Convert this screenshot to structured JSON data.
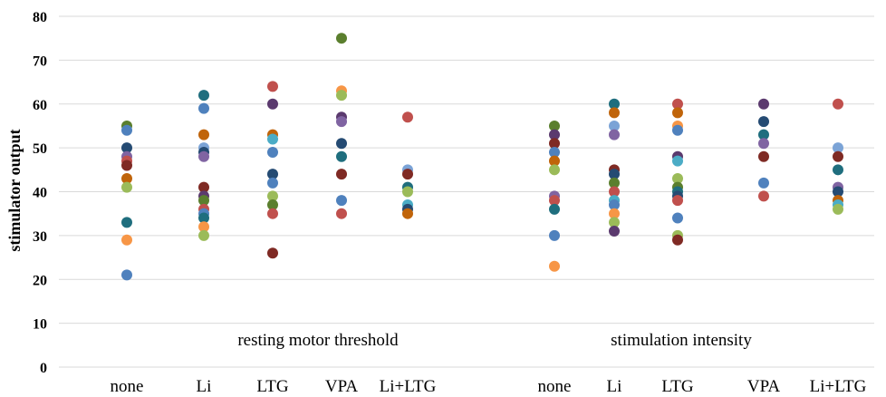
{
  "chart_data": {
    "type": "scatter",
    "ylabel": "stimulator output",
    "ylim": [
      0,
      80
    ],
    "yticks": [
      0,
      10,
      20,
      30,
      40,
      50,
      60,
      70,
      80
    ],
    "grid": true,
    "legend": "none",
    "groups": [
      {
        "label": "resting motor threshold",
        "categories": [
          "none",
          "Li",
          "LTG",
          "VPA",
          "Li+LTG"
        ]
      },
      {
        "label": "stimulation intensity",
        "categories": [
          "none",
          "Li",
          "LTG",
          "VPA",
          "Li+LTG"
        ]
      }
    ],
    "categories": [
      "none",
      "Li",
      "LTG",
      "VPA",
      "Li+LTG",
      "none",
      "Li",
      "LTG",
      "VPA",
      "Li+LTG"
    ],
    "points": [
      {
        "cat": 0,
        "y": 55,
        "color": "#5b7f2e"
      },
      {
        "cat": 0,
        "y": 54,
        "color": "#4f81bd"
      },
      {
        "cat": 0,
        "y": 50,
        "color": "#254b73"
      },
      {
        "cat": 0,
        "y": 48,
        "color": "#8064a2"
      },
      {
        "cat": 0,
        "y": 47,
        "color": "#c0504d"
      },
      {
        "cat": 0,
        "y": 46,
        "color": "#7f2a24"
      },
      {
        "cat": 0,
        "y": 43,
        "color": "#c0640a"
      },
      {
        "cat": 0,
        "y": 41,
        "color": "#9bbb59"
      },
      {
        "cat": 0,
        "y": 33,
        "color": "#1f6e7e"
      },
      {
        "cat": 0,
        "y": 29,
        "color": "#f79646"
      },
      {
        "cat": 0,
        "y": 21,
        "color": "#4f81bd"
      },
      {
        "cat": 1,
        "y": 62,
        "color": "#1f6e7e"
      },
      {
        "cat": 1,
        "y": 59,
        "color": "#4f81bd"
      },
      {
        "cat": 1,
        "y": 53,
        "color": "#c0640a"
      },
      {
        "cat": 1,
        "y": 50,
        "color": "#7ba3d6"
      },
      {
        "cat": 1,
        "y": 49,
        "color": "#254b73"
      },
      {
        "cat": 1,
        "y": 48,
        "color": "#8064a2"
      },
      {
        "cat": 1,
        "y": 41,
        "color": "#7f2a24"
      },
      {
        "cat": 1,
        "y": 39,
        "color": "#5b3a6e"
      },
      {
        "cat": 1,
        "y": 38,
        "color": "#5b7f2e"
      },
      {
        "cat": 1,
        "y": 36,
        "color": "#c0504d"
      },
      {
        "cat": 1,
        "y": 35,
        "color": "#4f81bd"
      },
      {
        "cat": 1,
        "y": 34,
        "color": "#1f6e7e"
      },
      {
        "cat": 1,
        "y": 32,
        "color": "#f79646"
      },
      {
        "cat": 1,
        "y": 30,
        "color": "#9bbb59"
      },
      {
        "cat": 2,
        "y": 64,
        "color": "#c0504d"
      },
      {
        "cat": 2,
        "y": 60,
        "color": "#5b3a6e"
      },
      {
        "cat": 2,
        "y": 53,
        "color": "#c0640a"
      },
      {
        "cat": 2,
        "y": 52,
        "color": "#4bacc6"
      },
      {
        "cat": 2,
        "y": 49,
        "color": "#4f81bd"
      },
      {
        "cat": 2,
        "y": 44,
        "color": "#254b73"
      },
      {
        "cat": 2,
        "y": 42,
        "color": "#4f81bd"
      },
      {
        "cat": 2,
        "y": 39,
        "color": "#9bbb59"
      },
      {
        "cat": 2,
        "y": 37,
        "color": "#5b7f2e"
      },
      {
        "cat": 2,
        "y": 35,
        "color": "#c0504d"
      },
      {
        "cat": 2,
        "y": 26,
        "color": "#7f2a24"
      },
      {
        "cat": 3,
        "y": 75,
        "color": "#5b7f2e"
      },
      {
        "cat": 3,
        "y": 63,
        "color": "#f79646"
      },
      {
        "cat": 3,
        "y": 62,
        "color": "#9bbb59"
      },
      {
        "cat": 3,
        "y": 57,
        "color": "#5b3a6e"
      },
      {
        "cat": 3,
        "y": 56,
        "color": "#8064a2"
      },
      {
        "cat": 3,
        "y": 51,
        "color": "#254b73"
      },
      {
        "cat": 3,
        "y": 48,
        "color": "#1f6e7e"
      },
      {
        "cat": 3,
        "y": 44,
        "color": "#7f2a24"
      },
      {
        "cat": 3,
        "y": 38,
        "color": "#4f81bd"
      },
      {
        "cat": 3,
        "y": 35,
        "color": "#c0504d"
      },
      {
        "cat": 4,
        "y": 57,
        "color": "#c0504d"
      },
      {
        "cat": 4,
        "y": 45,
        "color": "#7ba3d6"
      },
      {
        "cat": 4,
        "y": 44,
        "color": "#7f2a24"
      },
      {
        "cat": 4,
        "y": 41,
        "color": "#1f6e7e"
      },
      {
        "cat": 4,
        "y": 40,
        "color": "#9bbb59"
      },
      {
        "cat": 4,
        "y": 37,
        "color": "#4bacc6"
      },
      {
        "cat": 4,
        "y": 36,
        "color": "#254b73"
      },
      {
        "cat": 4,
        "y": 35,
        "color": "#c0640a"
      },
      {
        "cat": 5,
        "y": 55,
        "color": "#5b7f2e"
      },
      {
        "cat": 5,
        "y": 53,
        "color": "#5b3a6e"
      },
      {
        "cat": 5,
        "y": 51,
        "color": "#7f2a24"
      },
      {
        "cat": 5,
        "y": 49,
        "color": "#4f81bd"
      },
      {
        "cat": 5,
        "y": 47,
        "color": "#c0640a"
      },
      {
        "cat": 5,
        "y": 45,
        "color": "#9bbb59"
      },
      {
        "cat": 5,
        "y": 39,
        "color": "#8064a2"
      },
      {
        "cat": 5,
        "y": 38,
        "color": "#c0504d"
      },
      {
        "cat": 5,
        "y": 36,
        "color": "#1f6e7e"
      },
      {
        "cat": 5,
        "y": 30,
        "color": "#4f81bd"
      },
      {
        "cat": 5,
        "y": 23,
        "color": "#f79646"
      },
      {
        "cat": 6,
        "y": 60,
        "color": "#1f6e7e"
      },
      {
        "cat": 6,
        "y": 58,
        "color": "#c0640a"
      },
      {
        "cat": 6,
        "y": 55,
        "color": "#7ba3d6"
      },
      {
        "cat": 6,
        "y": 53,
        "color": "#8064a2"
      },
      {
        "cat": 6,
        "y": 45,
        "color": "#7f2a24"
      },
      {
        "cat": 6,
        "y": 44,
        "color": "#254b73"
      },
      {
        "cat": 6,
        "y": 42,
        "color": "#5b7f2e"
      },
      {
        "cat": 6,
        "y": 40,
        "color": "#c0504d"
      },
      {
        "cat": 6,
        "y": 38,
        "color": "#4bacc6"
      },
      {
        "cat": 6,
        "y": 37,
        "color": "#4f81bd"
      },
      {
        "cat": 6,
        "y": 35,
        "color": "#f79646"
      },
      {
        "cat": 6,
        "y": 33,
        "color": "#9bbb59"
      },
      {
        "cat": 6,
        "y": 31,
        "color": "#5b3a6e"
      },
      {
        "cat": 7,
        "y": 60,
        "color": "#c0504d"
      },
      {
        "cat": 7,
        "y": 58,
        "color": "#c0640a"
      },
      {
        "cat": 7,
        "y": 55,
        "color": "#f79646"
      },
      {
        "cat": 7,
        "y": 54,
        "color": "#4f81bd"
      },
      {
        "cat": 7,
        "y": 48,
        "color": "#5b3a6e"
      },
      {
        "cat": 7,
        "y": 47,
        "color": "#4bacc6"
      },
      {
        "cat": 7,
        "y": 43,
        "color": "#9bbb59"
      },
      {
        "cat": 7,
        "y": 41,
        "color": "#5b7f2e"
      },
      {
        "cat": 7,
        "y": 40,
        "color": "#1f6e7e"
      },
      {
        "cat": 7,
        "y": 39,
        "color": "#254b73"
      },
      {
        "cat": 7,
        "y": 38,
        "color": "#c0504d"
      },
      {
        "cat": 7,
        "y": 34,
        "color": "#4f81bd"
      },
      {
        "cat": 7,
        "y": 30,
        "color": "#9bbb59"
      },
      {
        "cat": 7,
        "y": 29,
        "color": "#7f2a24"
      },
      {
        "cat": 8,
        "y": 60,
        "color": "#5b3a6e"
      },
      {
        "cat": 8,
        "y": 56,
        "color": "#254b73"
      },
      {
        "cat": 8,
        "y": 53,
        "color": "#1f6e7e"
      },
      {
        "cat": 8,
        "y": 51,
        "color": "#8064a2"
      },
      {
        "cat": 8,
        "y": 48,
        "color": "#7f2a24"
      },
      {
        "cat": 8,
        "y": 42,
        "color": "#4f81bd"
      },
      {
        "cat": 8,
        "y": 39,
        "color": "#c0504d"
      },
      {
        "cat": 9,
        "y": 60,
        "color": "#c0504d"
      },
      {
        "cat": 9,
        "y": 50,
        "color": "#7ba3d6"
      },
      {
        "cat": 9,
        "y": 48,
        "color": "#7f2a24"
      },
      {
        "cat": 9,
        "y": 45,
        "color": "#1f6e7e"
      },
      {
        "cat": 9,
        "y": 41,
        "color": "#8064a2"
      },
      {
        "cat": 9,
        "y": 40,
        "color": "#254b73"
      },
      {
        "cat": 9,
        "y": 38,
        "color": "#c0640a"
      },
      {
        "cat": 9,
        "y": 37,
        "color": "#4bacc6"
      },
      {
        "cat": 9,
        "y": 36,
        "color": "#9bbb59"
      }
    ]
  }
}
